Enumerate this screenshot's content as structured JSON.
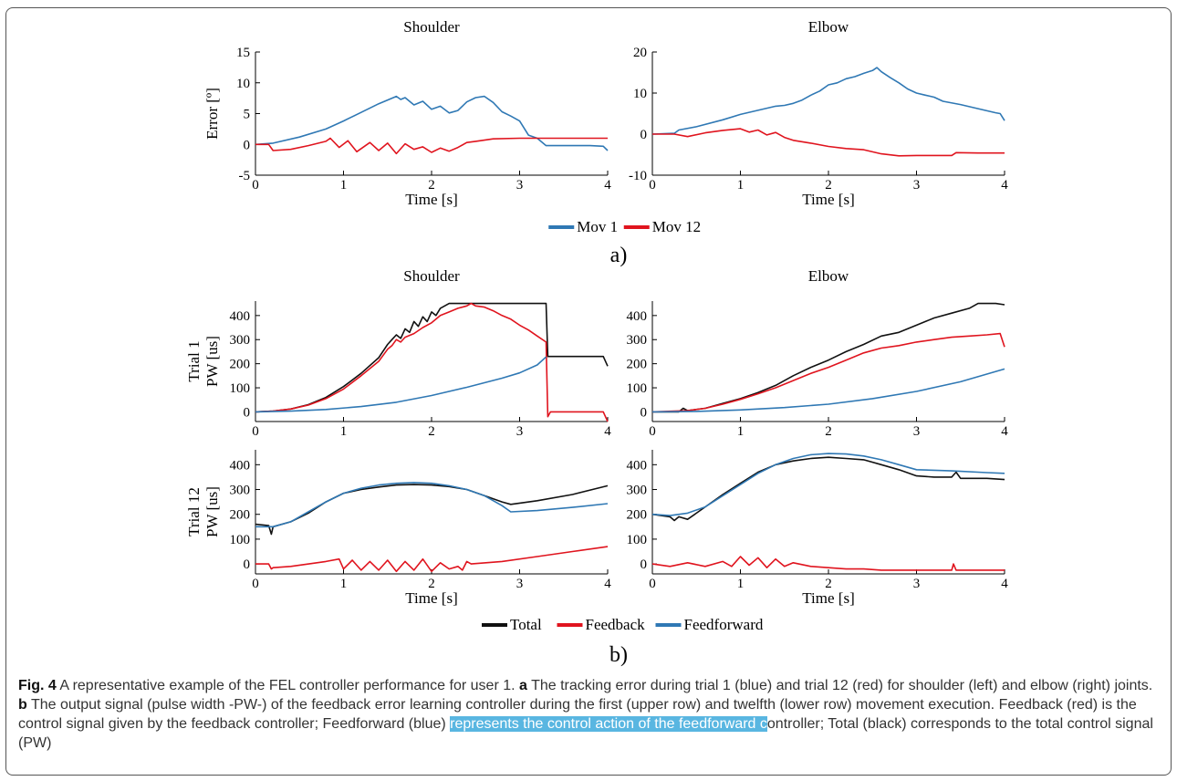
{
  "figure": {
    "panel_a_label": "a)",
    "panel_b_label": "b)"
  },
  "caption": {
    "fig_label": "Fig. 4",
    "intro": " A representative example of the FEL controller performance for user 1. ",
    "a_label": "a",
    "a_text": " The tracking error during trial 1 (blue) and trial 12 (red) for shoulder (left) and elbow (right) joints. ",
    "b_label": "b",
    "b_text": " The output signal (pulse width -PW-) of the feedback error learning controller during the first (upper row) and twelfth (lower row) movement execution. Feedback (red) is the control signal given by the feedback controller; Feedforward (blue) ",
    "highlighted": "represents the control action of the feedforward c",
    "tail": "ontroller; Total (black) corresponds to the total control signal (PW)"
  },
  "legend_a": [
    {
      "name": "Mov 1",
      "color": "#2f78b4"
    },
    {
      "name": "Mov 12",
      "color": "#e0141e"
    }
  ],
  "legend_b": [
    {
      "name": "Total",
      "color": "#111111"
    },
    {
      "name": "Feedback",
      "color": "#e0141e"
    },
    {
      "name": "Feedforward",
      "color": "#2f78b4"
    }
  ],
  "chart_data": [
    {
      "id": "a-shoulder",
      "type": "line",
      "title": "Shoulder",
      "xlabel": "Time [s]",
      "ylabel": "Error [º]",
      "xlim": [
        0,
        4
      ],
      "ylim": [
        -5,
        15
      ],
      "xticks": [
        0,
        1,
        2,
        3,
        4
      ],
      "yticks": [
        -5,
        0,
        5,
        10,
        15
      ],
      "series": [
        {
          "name": "Mov 1",
          "color": "#2f78b4",
          "x": [
            0,
            0.2,
            0.5,
            0.8,
            1.0,
            1.2,
            1.4,
            1.6,
            1.65,
            1.7,
            1.8,
            1.9,
            2.0,
            2.1,
            2.2,
            2.3,
            2.4,
            2.5,
            2.6,
            2.7,
            2.8,
            2.9,
            3.0,
            3.1,
            3.2,
            3.3,
            3.6,
            3.8,
            3.95,
            4.0
          ],
          "y": [
            0,
            0.2,
            1.2,
            2.5,
            3.8,
            5.2,
            6.6,
            7.8,
            7.3,
            7.6,
            6.4,
            7.0,
            5.7,
            6.2,
            5.1,
            5.5,
            6.9,
            7.6,
            7.8,
            6.8,
            5.3,
            4.6,
            3.8,
            1.5,
            1.0,
            -0.2,
            -0.2,
            -0.2,
            -0.3,
            -1.0
          ]
        },
        {
          "name": "Mov 12",
          "color": "#e0141e",
          "x": [
            0,
            0.15,
            0.2,
            0.4,
            0.6,
            0.8,
            0.85,
            0.95,
            1.05,
            1.15,
            1.3,
            1.4,
            1.5,
            1.6,
            1.7,
            1.8,
            1.9,
            2.0,
            2.1,
            2.2,
            2.3,
            2.4,
            2.5,
            2.7,
            3.0,
            3.3,
            3.7,
            4.0
          ],
          "y": [
            0,
            0,
            -1.0,
            -0.8,
            -0.2,
            0.5,
            1.0,
            -0.5,
            0.6,
            -1.2,
            0.3,
            -1.0,
            0.2,
            -1.5,
            0.1,
            -0.8,
            -0.4,
            -1.3,
            -0.6,
            -1.1,
            -0.5,
            0.3,
            0.5,
            0.9,
            1.0,
            1.0,
            1.0,
            1.0
          ]
        }
      ]
    },
    {
      "id": "a-elbow",
      "type": "line",
      "title": "Elbow",
      "xlabel": "Time [s]",
      "ylabel": "",
      "xlim": [
        0,
        4
      ],
      "ylim": [
        -10,
        20
      ],
      "xticks": [
        0,
        1,
        2,
        3,
        4
      ],
      "yticks": [
        -10,
        0,
        10,
        20
      ],
      "series": [
        {
          "name": "Mov 1",
          "color": "#2f78b4",
          "x": [
            0,
            0.25,
            0.3,
            0.5,
            0.8,
            1.0,
            1.2,
            1.4,
            1.5,
            1.6,
            1.7,
            1.8,
            1.9,
            2.0,
            2.1,
            2.2,
            2.3,
            2.4,
            2.5,
            2.55,
            2.6,
            2.7,
            2.8,
            2.9,
            3.0,
            3.1,
            3.2,
            3.3,
            3.5,
            3.7,
            3.9,
            3.95,
            4.0
          ],
          "y": [
            0,
            0.2,
            1.0,
            1.8,
            3.5,
            4.8,
            5.8,
            6.8,
            7.0,
            7.5,
            8.3,
            9.5,
            10.5,
            12.0,
            12.5,
            13.5,
            14.0,
            14.8,
            15.5,
            16.2,
            15.2,
            13.8,
            12.5,
            11.0,
            10.0,
            9.5,
            9.0,
            8.0,
            7.2,
            6.2,
            5.2,
            5.0,
            3.3
          ]
        },
        {
          "name": "Mov 12",
          "color": "#e0141e",
          "x": [
            0,
            0.25,
            0.4,
            0.6,
            0.8,
            1.0,
            1.1,
            1.2,
            1.3,
            1.4,
            1.5,
            1.6,
            1.8,
            2.0,
            2.2,
            2.4,
            2.6,
            2.8,
            3.0,
            3.3,
            3.4,
            3.45,
            3.7,
            4.0
          ],
          "y": [
            0,
            0,
            -0.6,
            0.3,
            0.9,
            1.3,
            0.5,
            1.0,
            -0.2,
            0.4,
            -0.8,
            -1.5,
            -2.2,
            -3.0,
            -3.5,
            -3.8,
            -4.8,
            -5.3,
            -5.2,
            -5.2,
            -5.2,
            -4.5,
            -4.6,
            -4.6
          ]
        }
      ]
    },
    {
      "id": "b-shoulder-trial1",
      "type": "line",
      "title": "Shoulder",
      "xlabel": "",
      "ylabel": "Trial 1\nPW [us]",
      "xlim": [
        0,
        4
      ],
      "ylim": [
        -40,
        460
      ],
      "xticks": [
        0,
        1,
        2,
        3,
        4
      ],
      "yticks": [
        0,
        100,
        200,
        300,
        400
      ],
      "series": [
        {
          "name": "Total",
          "color": "#111111",
          "x": [
            0,
            0.2,
            0.4,
            0.6,
            0.8,
            1.0,
            1.2,
            1.4,
            1.5,
            1.55,
            1.6,
            1.65,
            1.7,
            1.75,
            1.8,
            1.85,
            1.9,
            1.95,
            2.0,
            2.05,
            2.1,
            2.2,
            2.3,
            2.6,
            3.0,
            3.3,
            3.32,
            3.34,
            3.5,
            3.8,
            3.95,
            4.0
          ],
          "y": [
            0,
            3,
            12,
            30,
            60,
            105,
            160,
            225,
            280,
            300,
            320,
            305,
            345,
            330,
            375,
            355,
            395,
            375,
            415,
            400,
            430,
            450,
            450,
            450,
            450,
            450,
            230,
            230,
            230,
            230,
            230,
            190
          ]
        },
        {
          "name": "Feedback",
          "color": "#e0141e",
          "x": [
            0,
            0.2,
            0.4,
            0.6,
            0.8,
            1.0,
            1.2,
            1.4,
            1.5,
            1.55,
            1.6,
            1.65,
            1.7,
            1.8,
            1.9,
            2.0,
            2.1,
            2.2,
            2.3,
            2.4,
            2.45,
            2.5,
            2.6,
            2.7,
            2.8,
            2.9,
            3.0,
            3.1,
            3.2,
            3.3,
            3.32,
            3.35,
            3.6,
            3.95,
            4.0
          ],
          "y": [
            0,
            3,
            12,
            28,
            55,
            95,
            150,
            210,
            260,
            275,
            300,
            290,
            310,
            325,
            350,
            370,
            400,
            415,
            430,
            440,
            450,
            440,
            435,
            420,
            400,
            385,
            360,
            340,
            315,
            290,
            -20,
            0,
            0,
            0,
            -40
          ]
        },
        {
          "name": "Feedforward",
          "color": "#2f78b4",
          "x": [
            0,
            0.4,
            0.8,
            1.2,
            1.6,
            2.0,
            2.4,
            2.8,
            3.0,
            3.2,
            3.3
          ],
          "y": [
            0,
            3,
            10,
            22,
            40,
            68,
            102,
            140,
            162,
            195,
            228
          ]
        }
      ]
    },
    {
      "id": "b-elbow-trial1",
      "type": "line",
      "title": "Elbow",
      "xlabel": "",
      "ylabel": "",
      "xlim": [
        0,
        4
      ],
      "ylim": [
        -40,
        460
      ],
      "xticks": [
        0,
        1,
        2,
        3,
        4
      ],
      "yticks": [
        0,
        100,
        200,
        300,
        400
      ],
      "series": [
        {
          "name": "Total",
          "color": "#111111",
          "x": [
            0,
            0.3,
            0.35,
            0.4,
            0.6,
            0.8,
            1.0,
            1.2,
            1.4,
            1.6,
            1.8,
            2.0,
            2.2,
            2.4,
            2.6,
            2.8,
            3.0,
            3.2,
            3.4,
            3.6,
            3.7,
            3.8,
            3.9,
            4.0
          ],
          "y": [
            0,
            0,
            15,
            5,
            15,
            35,
            55,
            80,
            110,
            150,
            185,
            215,
            250,
            280,
            315,
            330,
            360,
            390,
            410,
            430,
            450,
            450,
            450,
            445
          ]
        },
        {
          "name": "Feedback",
          "color": "#e0141e",
          "x": [
            0,
            0.4,
            0.6,
            0.8,
            1.0,
            1.2,
            1.4,
            1.6,
            1.8,
            2.0,
            2.2,
            2.4,
            2.6,
            2.8,
            3.0,
            3.2,
            3.4,
            3.6,
            3.8,
            3.95,
            4.0
          ],
          "y": [
            0,
            5,
            15,
            32,
            52,
            75,
            100,
            130,
            160,
            185,
            215,
            245,
            265,
            275,
            290,
            300,
            310,
            315,
            320,
            325,
            270
          ]
        },
        {
          "name": "Feedforward",
          "color": "#2f78b4",
          "x": [
            0,
            0.5,
            1.0,
            1.5,
            2.0,
            2.5,
            3.0,
            3.5,
            4.0
          ],
          "y": [
            0,
            2,
            8,
            18,
            32,
            55,
            85,
            125,
            178
          ]
        }
      ]
    },
    {
      "id": "b-shoulder-trial12",
      "type": "line",
      "title": "",
      "xlabel": "Time [s]",
      "ylabel": "Trial 12\nPW [us]",
      "xlim": [
        0,
        4
      ],
      "ylim": [
        -40,
        460
      ],
      "xticks": [
        0,
        1,
        2,
        3,
        4
      ],
      "yticks": [
        0,
        100,
        200,
        300,
        400
      ],
      "series": [
        {
          "name": "Total",
          "color": "#111111",
          "x": [
            0,
            0.15,
            0.18,
            0.2,
            0.4,
            0.6,
            0.8,
            1.0,
            1.2,
            1.4,
            1.6,
            1.8,
            2.0,
            2.2,
            2.4,
            2.6,
            2.8,
            2.9,
            3.2,
            3.6,
            4.0
          ],
          "y": [
            160,
            155,
            120,
            150,
            170,
            205,
            250,
            285,
            300,
            310,
            318,
            320,
            318,
            312,
            300,
            275,
            250,
            240,
            255,
            280,
            315
          ]
        },
        {
          "name": "Feedback",
          "color": "#e0141e",
          "x": [
            0,
            0.15,
            0.18,
            0.2,
            0.4,
            0.8,
            0.95,
            1.0,
            1.1,
            1.2,
            1.3,
            1.4,
            1.5,
            1.6,
            1.7,
            1.8,
            1.9,
            2.0,
            2.1,
            2.2,
            2.3,
            2.35,
            2.4,
            2.45,
            2.8,
            3.2,
            3.6,
            4.0
          ],
          "y": [
            0,
            0,
            -20,
            -15,
            -10,
            10,
            20,
            -20,
            15,
            -25,
            10,
            -25,
            15,
            -30,
            10,
            -25,
            20,
            -30,
            5,
            -20,
            -10,
            -25,
            10,
            0,
            10,
            30,
            50,
            70
          ]
        },
        {
          "name": "Feedforward",
          "color": "#2f78b4",
          "x": [
            0,
            0.2,
            0.4,
            0.6,
            0.8,
            1.0,
            1.2,
            1.4,
            1.6,
            1.8,
            2.0,
            2.2,
            2.4,
            2.6,
            2.8,
            2.9,
            3.2,
            3.6,
            4.0
          ],
          "y": [
            150,
            150,
            170,
            210,
            250,
            285,
            305,
            318,
            325,
            328,
            325,
            315,
            300,
            275,
            235,
            210,
            215,
            228,
            243
          ]
        }
      ]
    },
    {
      "id": "b-elbow-trial12",
      "type": "line",
      "title": "",
      "xlabel": "Time [s]",
      "ylabel": "",
      "xlim": [
        0,
        4
      ],
      "ylim": [
        -40,
        460
      ],
      "xticks": [
        0,
        1,
        2,
        3,
        4
      ],
      "yticks": [
        0,
        100,
        200,
        300,
        400
      ],
      "series": [
        {
          "name": "Total",
          "color": "#111111",
          "x": [
            0,
            0.2,
            0.25,
            0.3,
            0.4,
            0.5,
            0.6,
            0.8,
            1.0,
            1.2,
            1.4,
            1.6,
            1.8,
            2.0,
            2.2,
            2.4,
            2.6,
            2.8,
            3.0,
            3.2,
            3.4,
            3.45,
            3.5,
            3.8,
            4.0
          ],
          "y": [
            200,
            190,
            175,
            190,
            180,
            205,
            230,
            280,
            325,
            370,
            400,
            415,
            425,
            430,
            425,
            420,
            400,
            380,
            355,
            350,
            350,
            370,
            345,
            345,
            340
          ]
        },
        {
          "name": "Feedback",
          "color": "#e0141e",
          "x": [
            0,
            0.2,
            0.4,
            0.6,
            0.8,
            0.9,
            1.0,
            1.1,
            1.2,
            1.3,
            1.4,
            1.5,
            1.6,
            1.8,
            2.0,
            2.2,
            2.4,
            2.6,
            2.8,
            3.0,
            3.4,
            3.42,
            3.45,
            3.7,
            4.0
          ],
          "y": [
            0,
            -10,
            5,
            -10,
            10,
            -10,
            30,
            -5,
            25,
            -15,
            20,
            -10,
            5,
            -10,
            -15,
            -20,
            -20,
            -25,
            -25,
            -25,
            -25,
            0,
            -25,
            -25,
            -25
          ]
        },
        {
          "name": "Feedforward",
          "color": "#2f78b4",
          "x": [
            0,
            0.2,
            0.4,
            0.6,
            0.8,
            1.0,
            1.2,
            1.4,
            1.6,
            1.8,
            2.0,
            2.2,
            2.4,
            2.6,
            2.8,
            3.0,
            3.4,
            3.8,
            4.0
          ],
          "y": [
            200,
            195,
            205,
            230,
            275,
            320,
            365,
            400,
            425,
            440,
            445,
            443,
            435,
            420,
            400,
            380,
            375,
            368,
            365
          ]
        }
      ]
    }
  ]
}
